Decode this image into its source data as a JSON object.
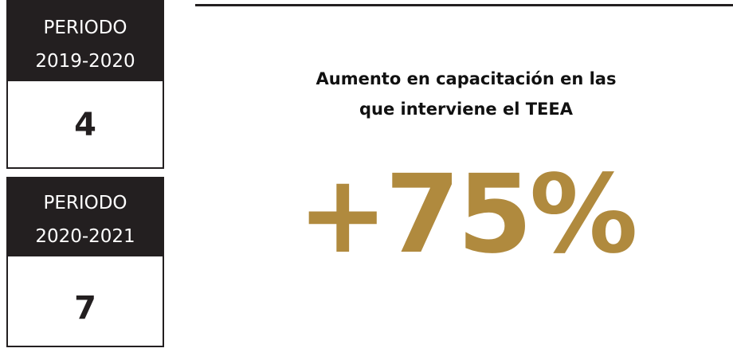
{
  "periods": [
    {
      "label": "PERIODO",
      "years": "2019-2020",
      "value": 4
    },
    {
      "label": "PERIODO",
      "years": "2020-2021",
      "value": 7
    }
  ],
  "headline": [
    "Aumento en capacitación en las",
    "que interviene el TEEA"
  ],
  "highlight": "+75%"
}
